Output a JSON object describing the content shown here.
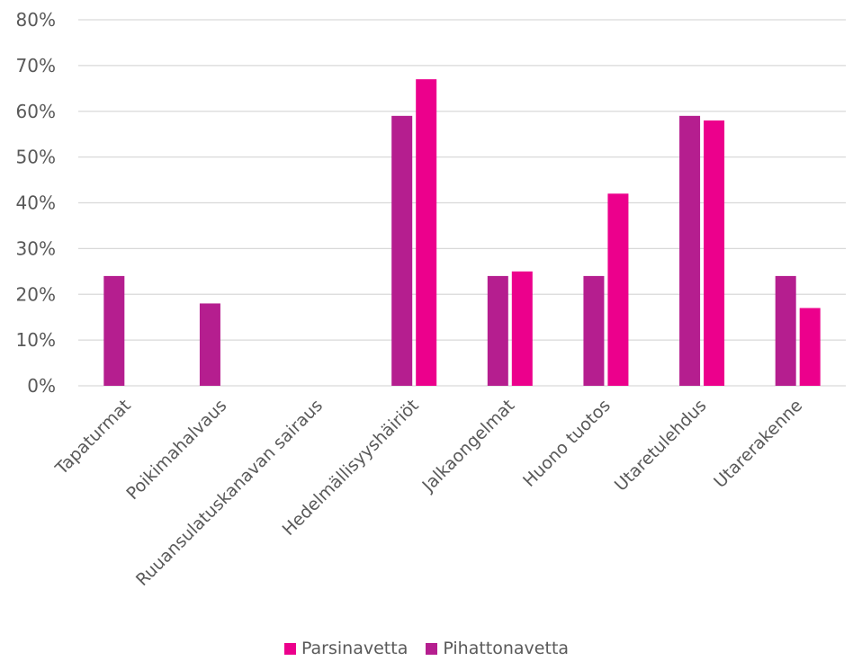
{
  "chart_data": {
    "type": "bar",
    "categories": [
      "Tapaturmat",
      "Poikimahalvaus",
      "Ruuansulatuskanavan sairaus",
      "Hedelmällisyyshäiriöt",
      "Jalkaongelmat",
      "Huono tuotos",
      "Utaretulehdus",
      "Utarerakenne"
    ],
    "series": [
      {
        "name": "Pihattonavetta",
        "color": "#B51E8F",
        "values": [
          24,
          18,
          0,
          59,
          24,
          24,
          59,
          24
        ]
      },
      {
        "name": "Parsinavetta",
        "color": "#EC008C",
        "values": [
          0,
          0,
          0,
          67,
          25,
          42,
          58,
          17
        ]
      }
    ],
    "ylim": [
      0,
      80
    ],
    "yticks": [
      "0%",
      "10%",
      "20%",
      "30%",
      "40%",
      "50%",
      "60%",
      "70%",
      "80%"
    ],
    "grid": true,
    "legend_position": "bottom",
    "legend_order": [
      "Parsinavetta",
      "Pihattonavetta"
    ]
  }
}
